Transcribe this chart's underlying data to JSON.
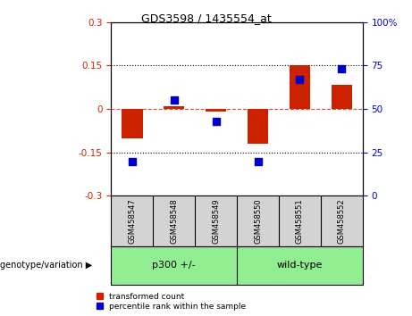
{
  "title": "GDS3598 / 1435554_at",
  "samples": [
    "GSM458547",
    "GSM458548",
    "GSM458549",
    "GSM458550",
    "GSM458551",
    "GSM458552"
  ],
  "red_values": [
    -0.1,
    0.01,
    -0.01,
    -0.12,
    0.15,
    0.085
  ],
  "blue_values_pct": [
    20,
    55,
    43,
    20,
    67,
    73
  ],
  "group_defs": [
    {
      "label": "p300 +/-",
      "start": 0,
      "end": 2
    },
    {
      "label": "wild-type",
      "start": 3,
      "end": 5
    }
  ],
  "group_bg_color": "#90EE90",
  "sample_bg_color": "#D3D3D3",
  "ylim_left": [
    -0.3,
    0.3
  ],
  "ylim_right": [
    0,
    100
  ],
  "yticks_left": [
    -0.3,
    -0.15,
    0,
    0.15,
    0.3
  ],
  "yticks_right": [
    0,
    25,
    50,
    75,
    100
  ],
  "hlines_dotted": [
    -0.15,
    0.15
  ],
  "hline_zero_color": "#CC2200",
  "red_color": "#CC2200",
  "blue_color": "#0000CC",
  "bar_width": 0.5,
  "dot_size": 30,
  "legend_red": "transformed count",
  "legend_blue": "percentile rank within the sample",
  "genotype_label": "genotype/variation"
}
